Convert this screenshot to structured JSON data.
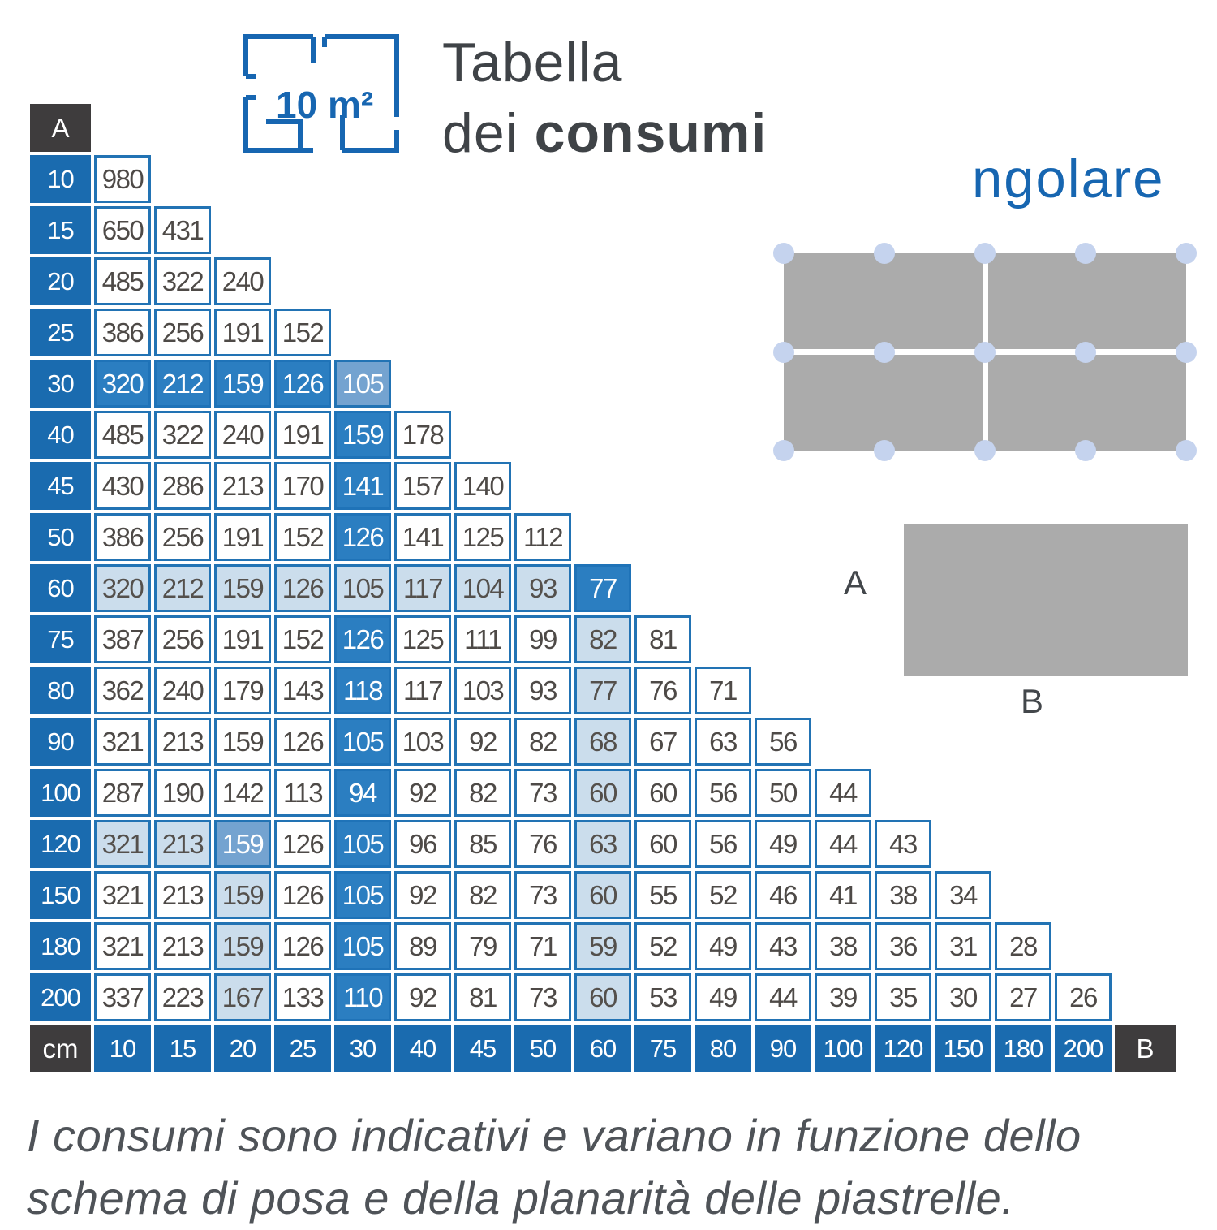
{
  "header": {
    "icon_area_label": "10 m²",
    "title_line1": "Tabella",
    "title_line2_regular": "dei ",
    "title_line2_bold": "consumi",
    "partial_word": "ngolare"
  },
  "diagram": {
    "side_a_label": "A",
    "side_b_label": "B"
  },
  "table": {
    "corner_a": "A",
    "corner_b": "B",
    "unit_label": "cm",
    "b_values": [
      "10",
      "15",
      "20",
      "25",
      "30",
      "40",
      "45",
      "50",
      "60",
      "75",
      "80",
      "90",
      "100",
      "120",
      "150",
      "180",
      "200"
    ],
    "rows": [
      {
        "a": "10",
        "v": [
          "980"
        ],
        "h": [
          ""
        ]
      },
      {
        "a": "15",
        "v": [
          "650",
          "431"
        ],
        "h": [
          "",
          ""
        ]
      },
      {
        "a": "20",
        "v": [
          "485",
          "322",
          "240"
        ],
        "h": [
          "",
          "",
          ""
        ]
      },
      {
        "a": "25",
        "v": [
          "386",
          "256",
          "191",
          "152"
        ],
        "h": [
          "",
          "",
          "",
          ""
        ]
      },
      {
        "a": "30",
        "v": [
          "320",
          "212",
          "159",
          "126",
          "105"
        ],
        "h": [
          "d",
          "d",
          "d",
          "d",
          "s"
        ]
      },
      {
        "a": "40",
        "v": [
          "485",
          "322",
          "240",
          "191",
          "159",
          "178"
        ],
        "h": [
          "",
          "",
          "",
          "",
          "d",
          ""
        ]
      },
      {
        "a": "45",
        "v": [
          "430",
          "286",
          "213",
          "170",
          "141",
          "157",
          "140"
        ],
        "h": [
          "",
          "",
          "",
          "",
          "d",
          "",
          ""
        ]
      },
      {
        "a": "50",
        "v": [
          "386",
          "256",
          "191",
          "152",
          "126",
          "141",
          "125",
          "112"
        ],
        "h": [
          "",
          "",
          "",
          "",
          "d",
          "",
          "",
          ""
        ]
      },
      {
        "a": "60",
        "v": [
          "320",
          "212",
          "159",
          "126",
          "105",
          "117",
          "104",
          "93",
          "77"
        ],
        "h": [
          "l",
          "l",
          "l",
          "l",
          "l",
          "l",
          "l",
          "l",
          "d"
        ]
      },
      {
        "a": "75",
        "v": [
          "387",
          "256",
          "191",
          "152",
          "126",
          "125",
          "111",
          "99",
          "82",
          "81"
        ],
        "h": [
          "",
          "",
          "",
          "",
          "d",
          "",
          "",
          "",
          "l",
          ""
        ]
      },
      {
        "a": "80",
        "v": [
          "362",
          "240",
          "179",
          "143",
          "118",
          "117",
          "103",
          "93",
          "77",
          "76",
          "71"
        ],
        "h": [
          "",
          "",
          "",
          "",
          "d",
          "",
          "",
          "",
          "l",
          "",
          ""
        ]
      },
      {
        "a": "90",
        "v": [
          "321",
          "213",
          "159",
          "126",
          "105",
          "103",
          "92",
          "82",
          "68",
          "67",
          "63",
          "56"
        ],
        "h": [
          "",
          "",
          "",
          "",
          "d",
          "",
          "",
          "",
          "l",
          "",
          "",
          ""
        ]
      },
      {
        "a": "100",
        "v": [
          "287",
          "190",
          "142",
          "113",
          "94",
          "92",
          "82",
          "73",
          "60",
          "60",
          "56",
          "50",
          "44"
        ],
        "h": [
          "",
          "",
          "",
          "",
          "d",
          "",
          "",
          "",
          "l",
          "",
          "",
          "",
          ""
        ]
      },
      {
        "a": "120",
        "v": [
          "321",
          "213",
          "159",
          "126",
          "105",
          "96",
          "85",
          "76",
          "63",
          "60",
          "56",
          "49",
          "44",
          "43"
        ],
        "h": [
          "l",
          "l",
          "s",
          "",
          "d",
          "",
          "",
          "",
          "l",
          "",
          "",
          "",
          "",
          ""
        ]
      },
      {
        "a": "150",
        "v": [
          "321",
          "213",
          "159",
          "126",
          "105",
          "92",
          "82",
          "73",
          "60",
          "55",
          "52",
          "46",
          "41",
          "38",
          "34"
        ],
        "h": [
          "",
          "",
          "l",
          "",
          "d",
          "",
          "",
          "",
          "l",
          "",
          "",
          "",
          "",
          "",
          ""
        ]
      },
      {
        "a": "180",
        "v": [
          "321",
          "213",
          "159",
          "126",
          "105",
          "89",
          "79",
          "71",
          "59",
          "52",
          "49",
          "43",
          "38",
          "36",
          "31",
          "28"
        ],
        "h": [
          "",
          "",
          "l",
          "",
          "d",
          "",
          "",
          "",
          "l",
          "",
          "",
          "",
          "",
          "",
          "",
          ""
        ]
      },
      {
        "a": "200",
        "v": [
          "337",
          "223",
          "167",
          "133",
          "110",
          "92",
          "81",
          "73",
          "60",
          "53",
          "49",
          "44",
          "39",
          "35",
          "30",
          "27",
          "26"
        ],
        "h": [
          "",
          "",
          "l",
          "",
          "d",
          "",
          "",
          "",
          "l",
          "",
          "",
          "",
          "",
          "",
          "",
          "",
          ""
        ]
      }
    ]
  },
  "footnote": {
    "line1": "I consumi sono indicativi e variano in funzione dello",
    "line2": "schema di posa e della planarità delle piastrelle."
  },
  "colors": {
    "header_blue": "#1A6BAF",
    "highlight_blue": "#2B7EC1",
    "highlight_steel": "#74A3D0",
    "highlight_light": "#CBDDEC",
    "border_blue": "#2273B4",
    "corner_dark": "#3E3C3D",
    "accent_blue": "#1766B1",
    "tile_gray": "#ABABAB",
    "dot_blue": "#C5D3EE",
    "text_dark": "#4E4A47"
  }
}
